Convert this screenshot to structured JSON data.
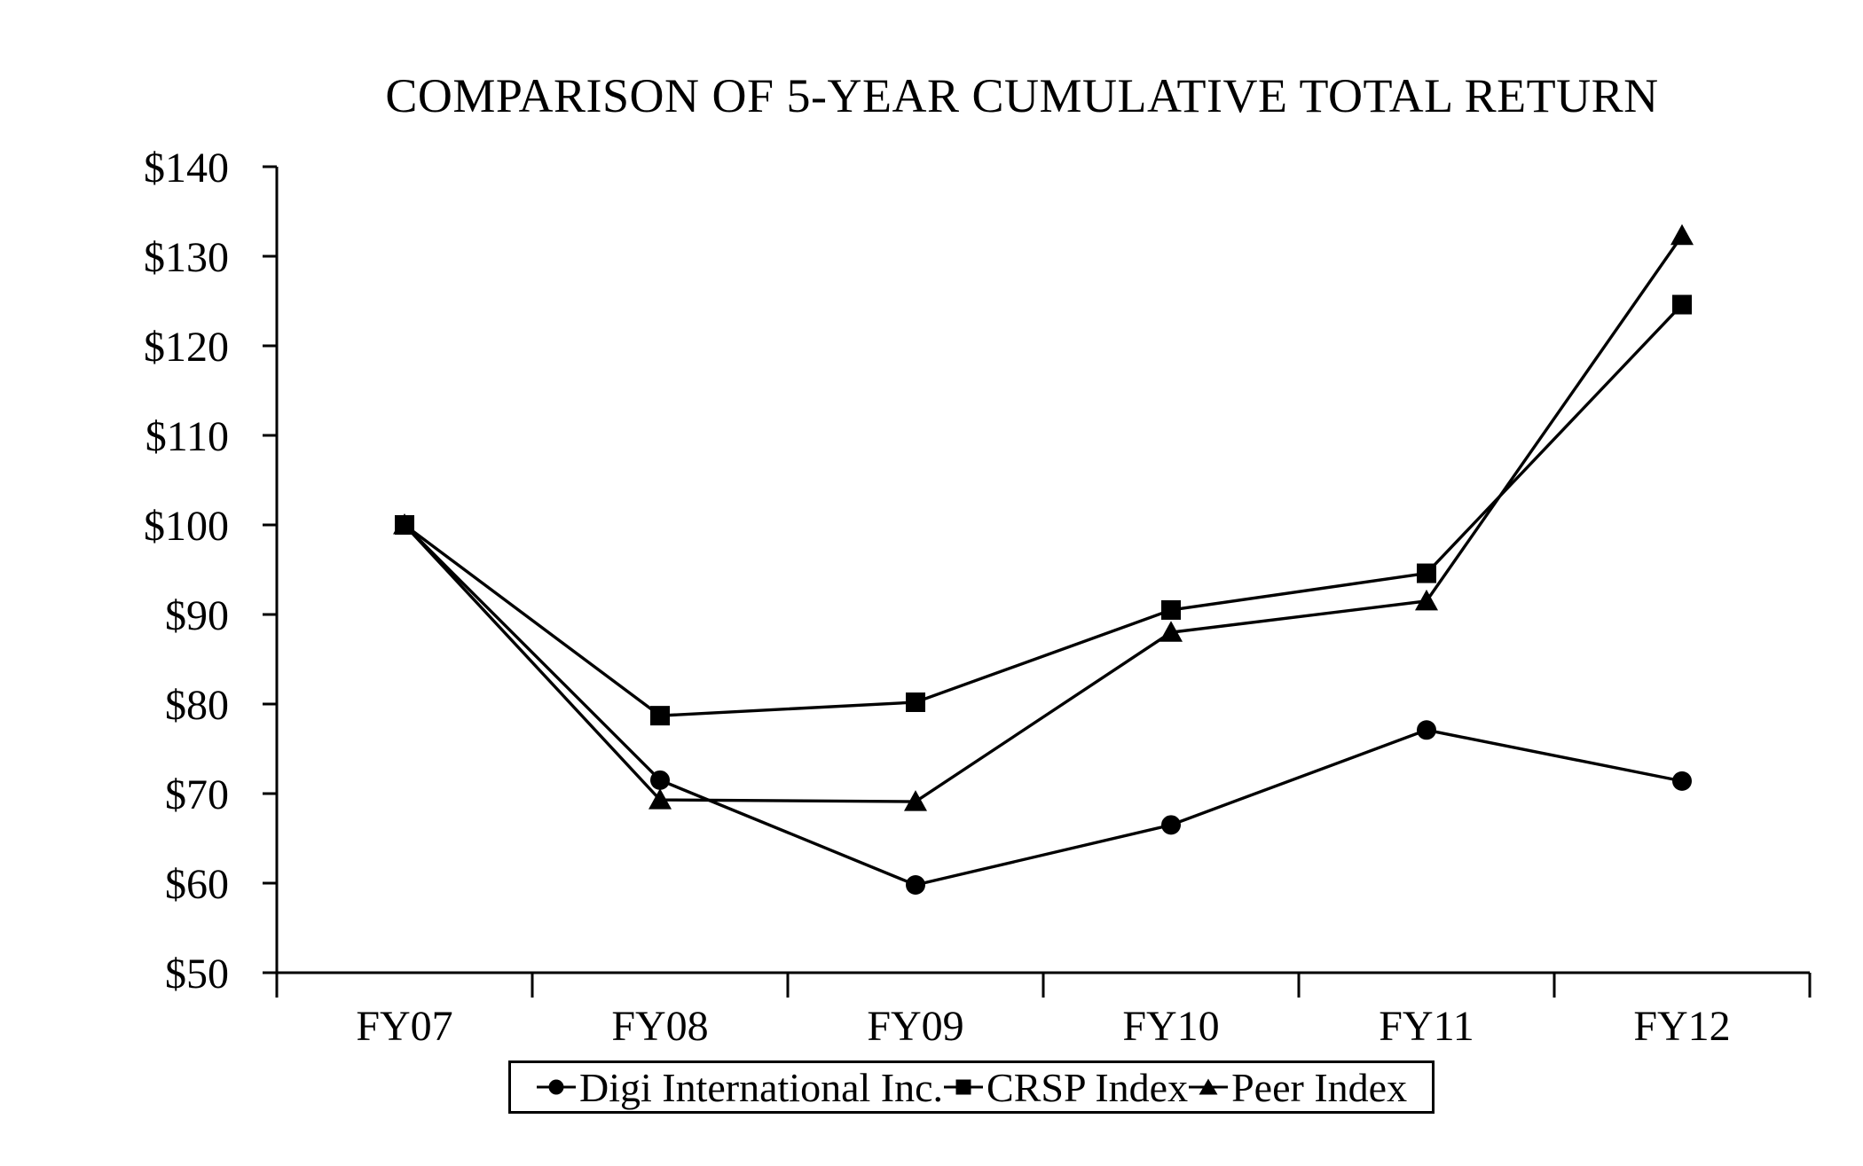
{
  "page": {
    "background": "#ffffff"
  },
  "chart_data": {
    "type": "line",
    "title": "COMPARISON OF 5-YEAR CUMULATIVE TOTAL RETURN",
    "categories": [
      "FY07",
      "FY08",
      "FY09",
      "FY10",
      "FY11",
      "FY12"
    ],
    "series": [
      {
        "name": "Digi International Inc.",
        "marker": "circle",
        "color": "#000000",
        "values": [
          100,
          71.5,
          59.8,
          66.5,
          77.1,
          71.4
        ]
      },
      {
        "name": "CRSP Index",
        "marker": "square",
        "color": "#000000",
        "values": [
          100,
          78.7,
          80.2,
          90.5,
          94.6,
          124.6
        ]
      },
      {
        "name": "Peer Index",
        "marker": "triangle",
        "color": "#000000",
        "values": [
          100,
          69.3,
          69.1,
          88.0,
          91.5,
          132.3
        ]
      }
    ],
    "xlabel": "",
    "ylabel": "",
    "ylim": [
      50,
      140
    ],
    "y_tick_step": 10,
    "y_tick_labels": [
      "$50",
      "$60",
      "$70",
      "$80",
      "$90",
      "$100",
      "$110",
      "$120",
      "$130",
      "$140"
    ],
    "x_tick_labels": [
      "FY07",
      "FY08",
      "FY09",
      "FY10",
      "FY11",
      "FY12"
    ],
    "grid": false,
    "legend_position": "bottom",
    "axis_color": "#000000",
    "text_color": "#000000",
    "background_color": "#ffffff"
  }
}
